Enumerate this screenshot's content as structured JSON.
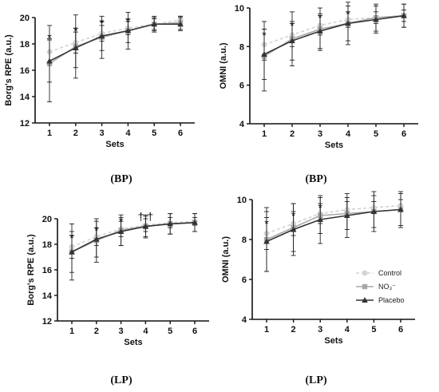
{
  "legend": {
    "items": [
      {
        "label": "Control",
        "color": "#d3d3d3",
        "marker": "circle",
        "dash": true
      },
      {
        "label": "NO₃⁻",
        "color": "#a8a8a8",
        "marker": "square",
        "dash": false
      },
      {
        "label": "Placebo",
        "color": "#333333",
        "marker": "triangle",
        "dash": false
      }
    ]
  },
  "chart_data": [
    {
      "type": "line",
      "caption": "(BP)",
      "xlabel": "Sets",
      "ylabel": "Borg's RPE (a.u.)",
      "x": [
        1,
        2,
        3,
        4,
        5,
        6
      ],
      "xticks": [
        "1",
        "2",
        "3",
        "4",
        "5",
        "6"
      ],
      "ylim": [
        12,
        20
      ],
      "yticks": [
        "12",
        "14",
        "16",
        "18",
        "20"
      ],
      "annotations": [
        {
          "x": 1,
          "y": 18.5,
          "text": "*"
        },
        {
          "x": 2,
          "y": 19.0,
          "text": "*"
        },
        {
          "x": 3,
          "y": 19.6,
          "text": "*"
        },
        {
          "x": 4,
          "y": 19.7,
          "text": "*"
        }
      ],
      "series": [
        {
          "name": "Control",
          "values": [
            17.4,
            18.1,
            18.8,
            19.2,
            19.5,
            19.8
          ],
          "err": [
            1.0,
            0.8,
            0.6,
            0.5,
            0.4,
            0.3
          ]
        },
        {
          "name": "NO₃⁻",
          "values": [
            16.5,
            17.8,
            18.5,
            19.0,
            19.5,
            19.6
          ],
          "err": [
            2.9,
            2.4,
            1.6,
            1.4,
            0.6,
            0.5
          ]
        },
        {
          "name": "Placebo",
          "values": [
            16.7,
            17.7,
            18.6,
            19.0,
            19.5,
            19.5
          ],
          "err": [
            1.6,
            1.5,
            1.1,
            0.9,
            0.5,
            0.5
          ]
        }
      ]
    },
    {
      "type": "line",
      "caption": "(BP)",
      "xlabel": "Sets",
      "ylabel": "OMNI (a.u.)",
      "x": [
        1,
        2,
        3,
        4,
        5,
        6
      ],
      "xticks": [
        "1",
        "2",
        "3",
        "4",
        "5",
        "6"
      ],
      "ylim": [
        4,
        10
      ],
      "yticks": [
        "4",
        "6",
        "8",
        "10"
      ],
      "annotations": [
        {
          "x": 1,
          "y": 8.6,
          "text": "*"
        },
        {
          "x": 2,
          "y": 9.1,
          "text": "*"
        },
        {
          "x": 3,
          "y": 9.5,
          "text": "*"
        },
        {
          "x": 4,
          "y": 9.7,
          "text": "*"
        }
      ],
      "series": [
        {
          "name": "Control",
          "values": [
            8.1,
            8.6,
            9.1,
            9.4,
            9.5,
            9.6
          ],
          "err": [
            0.8,
            0.6,
            0.5,
            0.4,
            0.3,
            0.3
          ]
        },
        {
          "name": "NO₃⁻",
          "values": [
            7.5,
            8.4,
            8.9,
            9.2,
            9.5,
            9.6
          ],
          "err": [
            1.8,
            1.4,
            1.1,
            1.1,
            0.7,
            0.6
          ]
        },
        {
          "name": "Placebo",
          "values": [
            7.6,
            8.3,
            8.8,
            9.2,
            9.4,
            9.6
          ],
          "err": [
            1.3,
            1.0,
            0.9,
            0.9,
            0.7,
            0.6
          ]
        }
      ]
    },
    {
      "type": "line",
      "caption": "(LP)",
      "xlabel": "Sets",
      "ylabel": "Borg's RPE (a.u.)",
      "x": [
        1,
        2,
        3,
        4,
        5,
        6
      ],
      "xticks": [
        "1",
        "2",
        "3",
        "4",
        "5",
        "6"
      ],
      "ylim": [
        12,
        20
      ],
      "yticks": [
        "12",
        "14",
        "16",
        "18",
        "20"
      ],
      "annotations": [
        {
          "x": 1,
          "y": 18.5,
          "text": "*"
        },
        {
          "x": 2,
          "y": 19.1,
          "text": "*"
        },
        {
          "x": 3,
          "y": 19.8,
          "text": "*"
        },
        {
          "x": 4,
          "y": 20.2,
          "text": "† †"
        }
      ],
      "series": [
        {
          "name": "Control",
          "values": [
            17.8,
            18.6,
            19.2,
            19.5,
            19.7,
            19.8
          ],
          "err": [
            0.9,
            0.7,
            0.6,
            0.5,
            0.4,
            0.3
          ]
        },
        {
          "name": "NO₃⁻",
          "values": [
            17.4,
            18.3,
            19.1,
            19.4,
            19.6,
            19.7
          ],
          "err": [
            2.2,
            1.7,
            1.2,
            0.9,
            0.8,
            0.7
          ]
        },
        {
          "name": "Placebo",
          "values": [
            17.4,
            18.4,
            19.0,
            19.4,
            19.6,
            19.7
          ],
          "err": [
            1.6,
            1.4,
            1.1,
            0.8,
            0.8,
            0.7
          ]
        }
      ]
    },
    {
      "type": "line",
      "caption": "(LP)",
      "xlabel": "Sets",
      "ylabel": "OMNI (a.u.)",
      "x": [
        1,
        2,
        3,
        4,
        5,
        6
      ],
      "xticks": [
        "1",
        "2",
        "3",
        "4",
        "5",
        "6"
      ],
      "ylim": [
        4,
        10
      ],
      "yticks": [
        "4",
        "6",
        "8",
        "10"
      ],
      "annotations": [
        {
          "x": 1,
          "y": 8.8,
          "text": "*"
        },
        {
          "x": 2,
          "y": 9.2,
          "text": "*"
        },
        {
          "x": 3,
          "y": 9.6,
          "text": "*"
        }
      ],
      "series": [
        {
          "name": "Control",
          "values": [
            8.3,
            8.8,
            9.3,
            9.5,
            9.6,
            9.7
          ],
          "err": [
            0.8,
            0.6,
            0.5,
            0.4,
            0.3,
            0.3
          ]
        },
        {
          "name": "NO₃⁻",
          "values": [
            8.0,
            8.6,
            9.2,
            9.3,
            9.4,
            9.5
          ],
          "err": [
            1.6,
            1.2,
            0.9,
            0.8,
            0.8,
            0.8
          ]
        },
        {
          "name": "Placebo",
          "values": [
            7.9,
            8.5,
            9.0,
            9.2,
            9.4,
            9.5
          ],
          "err": [
            1.5,
            1.3,
            1.2,
            1.1,
            1.0,
            0.9
          ]
        }
      ]
    }
  ]
}
